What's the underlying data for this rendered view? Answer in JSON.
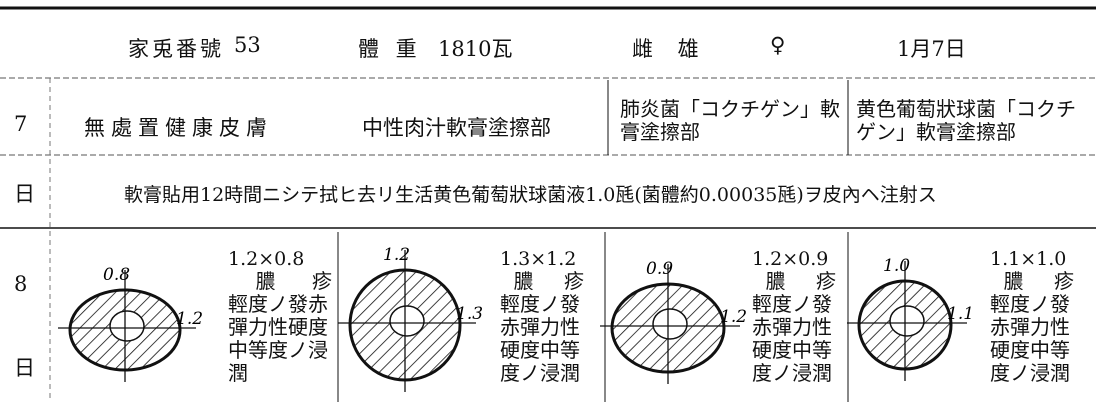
{
  "header": {
    "rabbit_label": "家兎番號",
    "rabbit_no": "53",
    "weight_label": "體 重",
    "weight": "1810瓦",
    "sex_label": "雌 雄",
    "sex": "♀",
    "date": "1月7日"
  },
  "day7": {
    "day": "7",
    "day_unit": "日",
    "cells": [
      "無處置健康皮膚",
      "中性肉汁軟膏塗擦部",
      "肺炎菌「コクチゲン」軟膏塗擦部",
      "黄色葡萄狀球菌「コクチゲン」軟膏塗擦部"
    ],
    "note": "軟膏貼用12時間ニシテ拭ヒ去リ生活黄色葡萄狀球菌液1.0瓱(菌體約0.00035瓱)ヲ皮內ヘ注射ス"
  },
  "day8": {
    "day": "8",
    "day_unit": "日",
    "cells": [
      {
        "size": "1.2×0.8",
        "v_label": "0.8",
        "h_label": "1.2",
        "title": "膿 疹",
        "desc": "輕度ノ發赤彈力性硬度中等度ノ浸潤"
      },
      {
        "size": "1.3×1.2",
        "v_label": "1.2",
        "h_label": "1.3",
        "title": "膿 疹",
        "desc": "輕度ノ發赤彈力性硬度中等度ノ浸潤"
      },
      {
        "size": "1.2×0.9",
        "v_label": "0.9",
        "h_label": "1.2",
        "title": "膿 疹",
        "desc": "輕度ノ發赤彈力性硬度中等度ノ浸潤"
      },
      {
        "size": "1.1×1.0",
        "v_label": "1.0",
        "h_label": "1.1",
        "title": "膿 疹",
        "desc": "輕度ノ發赤彈力性硬度中等度ノ浸潤"
      }
    ]
  }
}
